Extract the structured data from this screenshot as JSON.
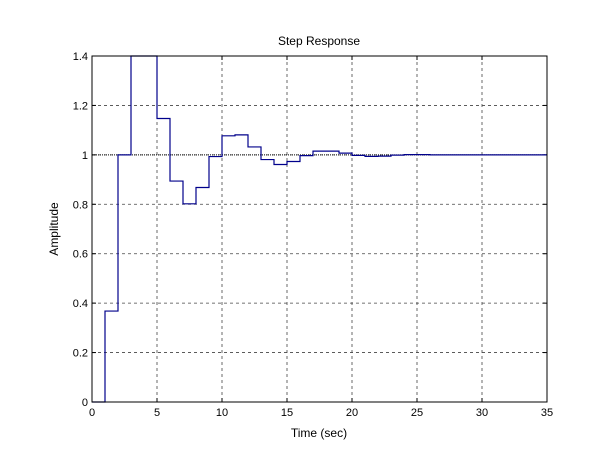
{
  "chart_data": {
    "type": "line",
    "title": "Step Response",
    "xlabel": "Time (sec)",
    "ylabel": "Amplitude",
    "xlim": [
      0,
      35
    ],
    "ylim": [
      0,
      1.4
    ],
    "xticks": [
      0,
      5,
      10,
      15,
      20,
      25,
      30,
      35
    ],
    "yticks": [
      0,
      0.2,
      0.4,
      0.6,
      0.8,
      1,
      1.2,
      1.4
    ],
    "xtick_labels": [
      "0",
      "5",
      "10",
      "15",
      "20",
      "25",
      "30",
      "35"
    ],
    "ytick_labels": [
      "0",
      "0.2",
      "0.4",
      "0.6",
      "0.8",
      "1",
      "1.2",
      "1.4"
    ],
    "grid": true,
    "grid_style": "dashed",
    "step": true,
    "reference_line": 1,
    "line_color": "#00008b",
    "x": [
      0,
      1,
      2,
      3,
      4,
      5,
      6,
      7,
      8,
      9,
      10,
      11,
      12,
      13,
      14,
      15,
      16,
      17,
      18,
      19,
      20,
      21,
      22,
      23,
      24,
      25,
      26,
      27,
      28,
      29,
      30,
      31,
      32,
      33,
      34
    ],
    "y": [
      0,
      0.368,
      1.0,
      1.4,
      1.4,
      1.147,
      0.894,
      0.802,
      0.868,
      0.993,
      1.077,
      1.081,
      1.032,
      0.981,
      0.961,
      0.973,
      0.997,
      1.015,
      1.015,
      1.007,
      0.998,
      0.994,
      0.995,
      0.999,
      1.001,
      1.001,
      1.0,
      1.0,
      1.0,
      1.0,
      1.0,
      1.0,
      1.0,
      1.0,
      1.0
    ]
  }
}
